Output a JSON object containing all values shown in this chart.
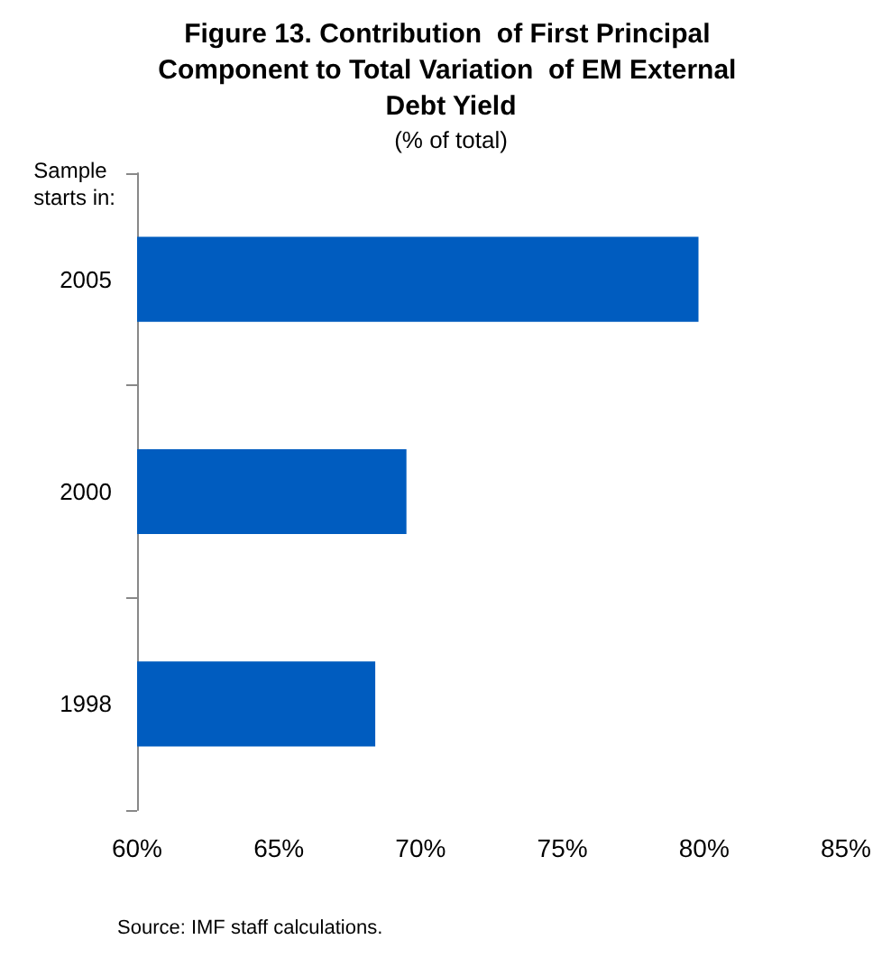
{
  "chart_data": {
    "type": "bar",
    "orientation": "horizontal",
    "title": "Figure 13. Contribution  of First Principal Component to Total Variation  of EM External Debt Yield",
    "subtitle": "(% of total)",
    "ylabel": "Sample starts in:",
    "categories": [
      "2005",
      "2000",
      "1998"
    ],
    "values": [
      79.8,
      69.5,
      68.4
    ],
    "color": "#005cbf",
    "xlim": [
      60,
      85
    ],
    "xticks": [
      {
        "value": 60,
        "label": "60%"
      },
      {
        "value": 65,
        "label": "65%"
      },
      {
        "value": 70,
        "label": "70%"
      },
      {
        "value": 75,
        "label": "75%"
      },
      {
        "value": 80,
        "label": "80%"
      },
      {
        "value": 85,
        "label": "85%"
      }
    ],
    "grid": false,
    "annotations": [
      "Source: IMF staff calculations."
    ]
  }
}
